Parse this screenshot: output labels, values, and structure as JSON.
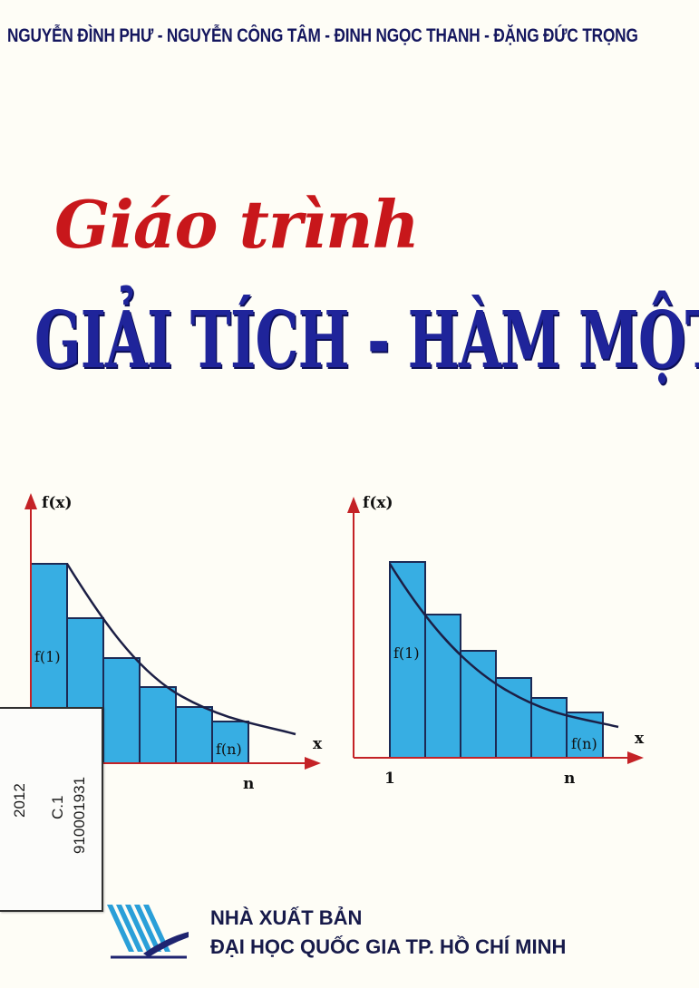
{
  "cover": {
    "authors": "NGUYỄN ĐÌNH PHƯ - NGUYỄN CÔNG TÂM - ĐINH NGỌC THANH - ĐẶNG ĐỨC TRỌNG",
    "title_script": "Giáo trình",
    "title_main": "GIẢI TÍCH - HÀM MỘT BIẾN"
  },
  "diagrams": {
    "left": {
      "y_label": "f(x)",
      "x_label": "x",
      "bar_label_first": "f(1)",
      "bar_label_last": "f(n)",
      "tick_n": "n"
    },
    "right": {
      "y_label": "f(x)",
      "x_label": "x",
      "bar_label_first": "f(1)",
      "bar_label_last": "f(n)",
      "tick_1": "1",
      "tick_n": "n"
    }
  },
  "library_label": {
    "year": "2012",
    "copy": "C.1",
    "barcode": "910001931"
  },
  "publisher": {
    "line1": "NHÀ XUẤT BẢN",
    "line2": "ĐẠI HỌC QUỐC GIA TP. HỒ CHÍ MINH"
  },
  "colors": {
    "bar_fill": "#37aee3",
    "title_red": "#c8171b",
    "title_blue": "#1f249a",
    "axis_red": "#c42226"
  }
}
